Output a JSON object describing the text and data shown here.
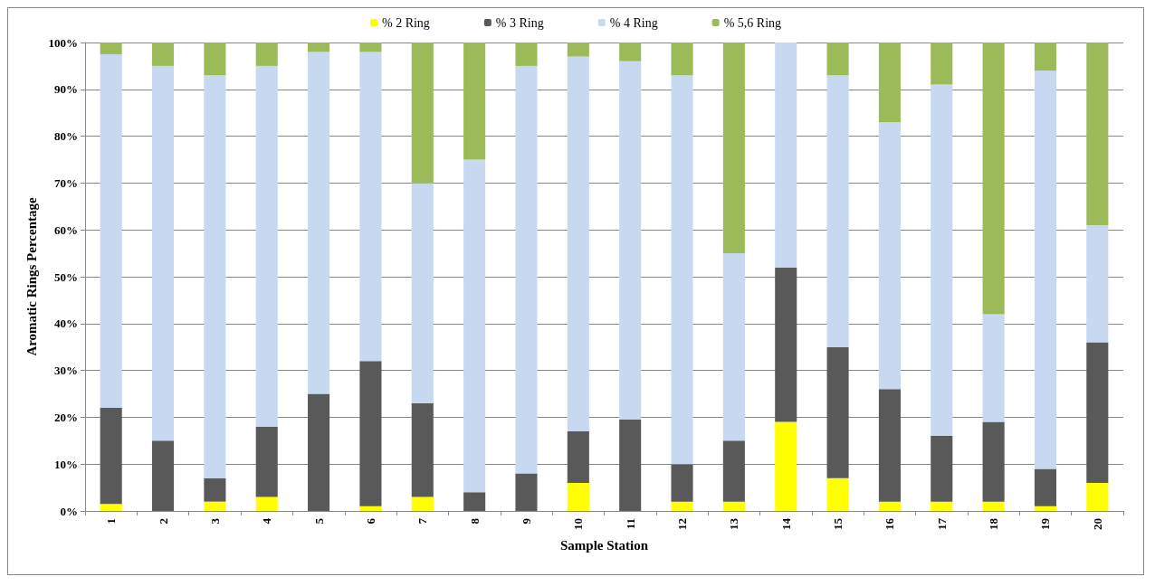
{
  "chart_data": {
    "type": "bar",
    "stacked": true,
    "xlabel": "Sample Station",
    "ylabel": "Aromatic Rings Percentage",
    "categories": [
      "1",
      "2",
      "3",
      "4",
      "5",
      "6",
      "7",
      "8",
      "9",
      "10",
      "11",
      "12",
      "13",
      "14",
      "15",
      "16",
      "17",
      "18",
      "19",
      "20"
    ],
    "series": [
      {
        "name": "% 2 Ring",
        "color": "#ffff00",
        "values": [
          1.5,
          0,
          2,
          3,
          0,
          1,
          3,
          0,
          0,
          6,
          0,
          2,
          2,
          19,
          7,
          2,
          2,
          2,
          1,
          6
        ]
      },
      {
        "name": "% 3 Ring",
        "color": "#595959",
        "values": [
          20.5,
          15,
          5,
          15,
          25,
          31,
          20,
          4,
          8,
          11,
          19.5,
          8,
          13,
          33,
          28,
          24,
          14,
          17,
          8,
          30
        ]
      },
      {
        "name": "% 4 Ring",
        "color": "#c6d9f1",
        "values": [
          75.5,
          80,
          86,
          77,
          73,
          66,
          47,
          71,
          87,
          80,
          76.5,
          83,
          40,
          48,
          58,
          57,
          75,
          23,
          85,
          25
        ]
      },
      {
        "name": "% 5,6 Ring",
        "color": "#9bbb59",
        "values": [
          2.5,
          5,
          7,
          5,
          2,
          2,
          30,
          25,
          5,
          3,
          4,
          7,
          45,
          0,
          7,
          17,
          9,
          58,
          6,
          39
        ]
      }
    ],
    "ylim": [
      0,
      100
    ],
    "yticks": [
      {
        "value": 0,
        "label": "0%"
      },
      {
        "value": 10,
        "label": "10%"
      },
      {
        "value": 20,
        "label": "20%"
      },
      {
        "value": 30,
        "label": "30%"
      },
      {
        "value": 40,
        "label": "40%"
      },
      {
        "value": 50,
        "label": "50%"
      },
      {
        "value": 60,
        "label": "60%"
      },
      {
        "value": 70,
        "label": "70%"
      },
      {
        "value": 80,
        "label": "80%"
      },
      {
        "value": 90,
        "label": "90%"
      },
      {
        "value": 100,
        "label": "100%"
      }
    ],
    "grid": "y",
    "legend": "top"
  }
}
